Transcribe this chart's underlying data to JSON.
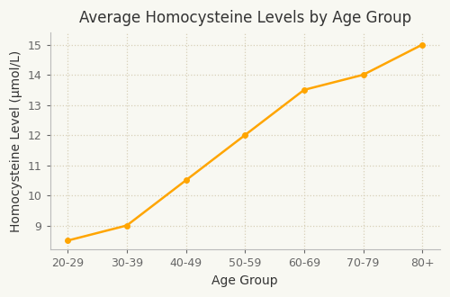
{
  "title": "Average Homocysteine Levels by Age Group",
  "xlabel": "Age Group",
  "ylabel": "Homocysteine Level (μmol/L)",
  "categories": [
    "20-29",
    "30-39",
    "40-49",
    "50-59",
    "60-69",
    "70-79",
    "80+"
  ],
  "values": [
    8.5,
    9.0,
    10.5,
    12.0,
    13.5,
    14.0,
    15.0
  ],
  "line_color": "#FFA500",
  "marker": "o",
  "marker_size": 4,
  "line_width": 1.8,
  "ylim": [
    8.2,
    15.4
  ],
  "yticks": [
    9,
    10,
    11,
    12,
    13,
    14,
    15
  ],
  "background_color": "#F8F8F2",
  "grid_color": "#D8D0B8",
  "title_fontsize": 12,
  "label_fontsize": 10,
  "tick_fontsize": 9
}
